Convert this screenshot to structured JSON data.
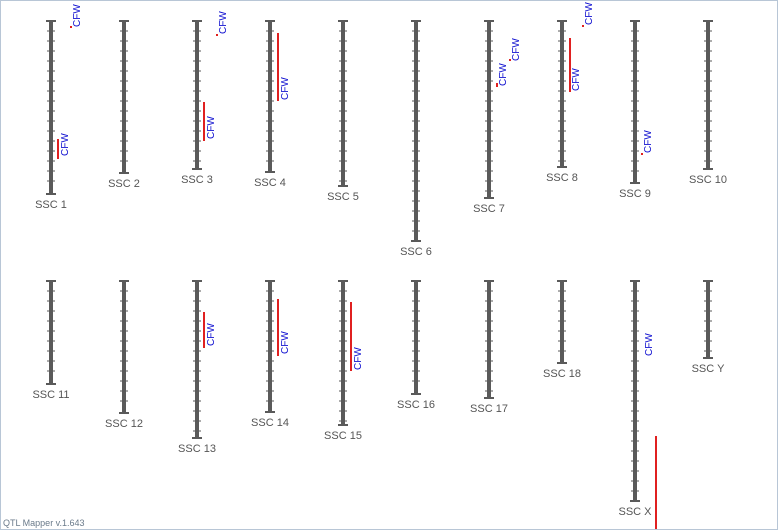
{
  "chromosomes": [
    {
      "label": "SSC 1",
      "qtls": [
        {
          "label": "CFW"
        },
        {
          "label": "CFW"
        }
      ]
    },
    {
      "label": "SSC 2",
      "qtls": []
    },
    {
      "label": "SSC 3",
      "qtls": [
        {
          "label": "CFW"
        },
        {
          "label": "CFW"
        }
      ]
    },
    {
      "label": "SSC 4",
      "qtls": [
        {
          "label": "CFW"
        }
      ]
    },
    {
      "label": "SSC 5",
      "qtls": []
    },
    {
      "label": "SSC 6",
      "qtls": []
    },
    {
      "label": "SSC 7",
      "qtls": [
        {
          "label": "CFW"
        },
        {
          "label": "CFW"
        }
      ]
    },
    {
      "label": "SSC 8",
      "qtls": [
        {
          "label": "CFW"
        },
        {
          "label": "CFW"
        }
      ]
    },
    {
      "label": "SSC 9",
      "qtls": [
        {
          "label": "CFW"
        }
      ]
    },
    {
      "label": "SSC 10",
      "qtls": []
    },
    {
      "label": "SSC 11",
      "qtls": []
    },
    {
      "label": "SSC 12",
      "qtls": []
    },
    {
      "label": "SSC 13",
      "qtls": [
        {
          "label": "CFW"
        }
      ]
    },
    {
      "label": "SSC 14",
      "qtls": [
        {
          "label": "CFW"
        }
      ]
    },
    {
      "label": "SSC 15",
      "qtls": [
        {
          "label": "CFW"
        }
      ]
    },
    {
      "label": "SSC 16",
      "qtls": []
    },
    {
      "label": "SSC 17",
      "qtls": []
    },
    {
      "label": "SSC 18",
      "qtls": []
    },
    {
      "label": "SSC X",
      "qtls": [
        {
          "label": "CFW"
        }
      ]
    },
    {
      "label": "SSC Y",
      "qtls": []
    }
  ],
  "footer": "QTL Mapper v.1.643"
}
